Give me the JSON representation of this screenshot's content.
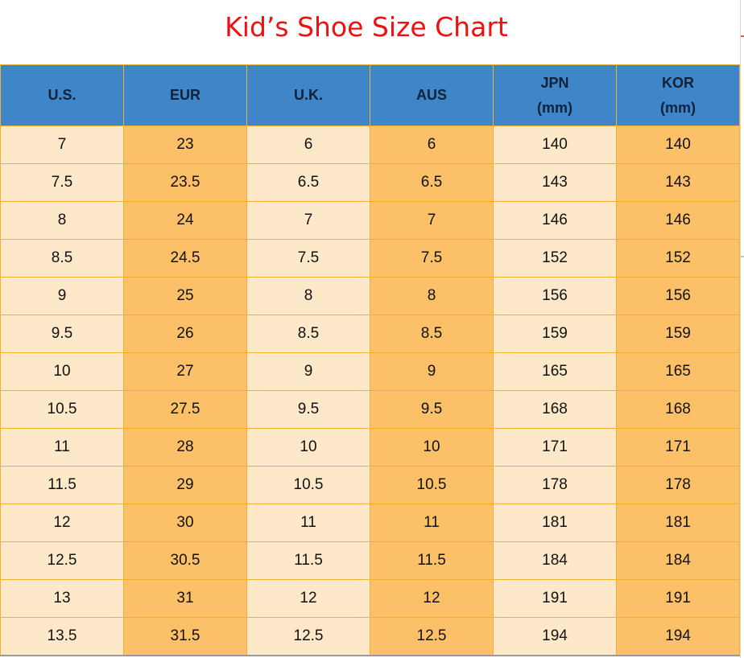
{
  "title": "Kid’s Shoe Size Chart",
  "columns": [
    {
      "line1": "U.S.",
      "line2": ""
    },
    {
      "line1": "EUR",
      "line2": ""
    },
    {
      "line1": "U.K.",
      "line2": ""
    },
    {
      "line1": "AUS",
      "line2": ""
    },
    {
      "line1": "JPN",
      "line2": "(mm)"
    },
    {
      "line1": "KOR",
      "line2": "(mm)"
    }
  ],
  "rows": [
    [
      "7",
      "23",
      "6",
      "6",
      "140",
      "140"
    ],
    [
      "7.5",
      "23.5",
      "6.5",
      "6.5",
      "143",
      "143"
    ],
    [
      "8",
      "24",
      "7",
      "7",
      "146",
      "146"
    ],
    [
      "8.5",
      "24.5",
      "7.5",
      "7.5",
      "152",
      "152"
    ],
    [
      "9",
      "25",
      "8",
      "8",
      "156",
      "156"
    ],
    [
      "9.5",
      "26",
      "8.5",
      "8.5",
      "159",
      "159"
    ],
    [
      "10",
      "27",
      "9",
      "9",
      "165",
      "165"
    ],
    [
      "10.5",
      "27.5",
      "9.5",
      "9.5",
      "168",
      "168"
    ],
    [
      "11",
      "28",
      "10",
      "10",
      "171",
      "171"
    ],
    [
      "11.5",
      "29",
      "10.5",
      "10.5",
      "178",
      "178"
    ],
    [
      "12",
      "30",
      "11",
      "11",
      "181",
      "181"
    ],
    [
      "12.5",
      "30.5",
      "11.5",
      "11.5",
      "184",
      "184"
    ],
    [
      "13",
      "31",
      "12",
      "12",
      "191",
      "191"
    ],
    [
      "13.5",
      "31.5",
      "12.5",
      "12.5",
      "194",
      "194"
    ]
  ],
  "colors": {
    "title": "#ee1111",
    "header_bg": "#3e86c8",
    "cell_light": "#fde9c9",
    "cell_dark": "#fcc068",
    "border": "#f0b132"
  }
}
